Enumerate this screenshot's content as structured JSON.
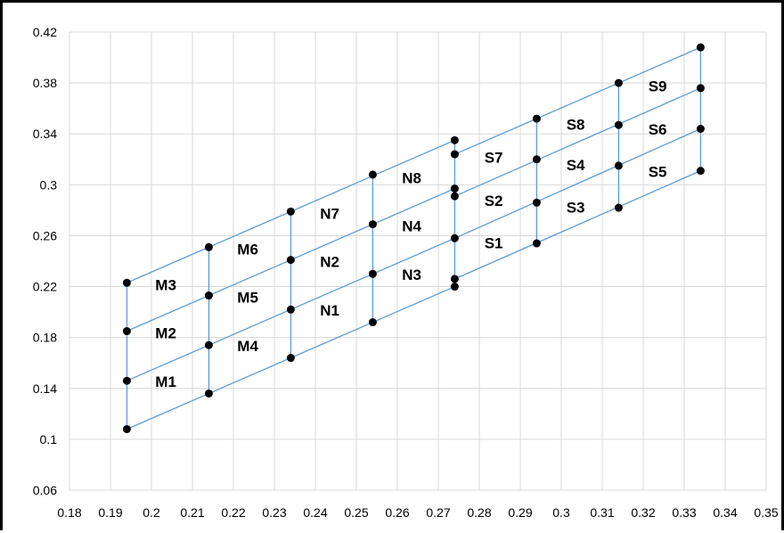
{
  "chart_data": {
    "type": "scatter",
    "title": "",
    "xlabel": "",
    "ylabel": "",
    "xlim": [
      0.18,
      0.35
    ],
    "ylim": [
      0.06,
      0.42
    ],
    "x_ticks": [
      "0.18",
      "0.19",
      "0.2",
      "0.21",
      "0.22",
      "0.23",
      "0.24",
      "0.25",
      "0.26",
      "0.27",
      "0.28",
      "0.29",
      "0.3",
      "0.31",
      "0.32",
      "0.33",
      "0.34",
      "0.35"
    ],
    "y_ticks": [
      "0.06",
      "0.1",
      "0.14",
      "0.18",
      "0.22",
      "0.26",
      "0.3",
      "0.34",
      "0.38",
      "0.42"
    ],
    "grid": true,
    "legend": "none",
    "colors": {
      "lines": "#5b9bd5",
      "points": "#000000",
      "grid": "#d9d9d9"
    },
    "points": [
      [
        0.194,
        0.108
      ],
      [
        0.194,
        0.146
      ],
      [
        0.194,
        0.185
      ],
      [
        0.194,
        0.223
      ],
      [
        0.214,
        0.136
      ],
      [
        0.214,
        0.174
      ],
      [
        0.214,
        0.213
      ],
      [
        0.214,
        0.251
      ],
      [
        0.234,
        0.164
      ],
      [
        0.234,
        0.202
      ],
      [
        0.234,
        0.241
      ],
      [
        0.234,
        0.279
      ],
      [
        0.254,
        0.192
      ],
      [
        0.254,
        0.23
      ],
      [
        0.254,
        0.269
      ],
      [
        0.254,
        0.308
      ],
      [
        0.274,
        0.22
      ],
      [
        0.274,
        0.226
      ],
      [
        0.274,
        0.258
      ],
      [
        0.274,
        0.291
      ],
      [
        0.274,
        0.297
      ],
      [
        0.274,
        0.324
      ],
      [
        0.274,
        0.335
      ],
      [
        0.294,
        0.254
      ],
      [
        0.294,
        0.286
      ],
      [
        0.294,
        0.32
      ],
      [
        0.294,
        0.352
      ],
      [
        0.314,
        0.282
      ],
      [
        0.314,
        0.315
      ],
      [
        0.314,
        0.347
      ],
      [
        0.314,
        0.38
      ],
      [
        0.334,
        0.311
      ],
      [
        0.334,
        0.344
      ],
      [
        0.334,
        0.376
      ],
      [
        0.334,
        0.408
      ]
    ],
    "lines": [
      [
        [
          0.194,
          0.108
        ],
        [
          0.274,
          0.22
        ]
      ],
      [
        [
          0.194,
          0.146
        ],
        [
          0.274,
          0.258
        ]
      ],
      [
        [
          0.194,
          0.185
        ],
        [
          0.274,
          0.297
        ]
      ],
      [
        [
          0.194,
          0.223
        ],
        [
          0.274,
          0.335
        ]
      ],
      [
        [
          0.274,
          0.226
        ],
        [
          0.334,
          0.311
        ]
      ],
      [
        [
          0.274,
          0.258
        ],
        [
          0.334,
          0.344
        ]
      ],
      [
        [
          0.274,
          0.291
        ],
        [
          0.334,
          0.376
        ]
      ],
      [
        [
          0.274,
          0.324
        ],
        [
          0.334,
          0.408
        ]
      ],
      [
        [
          0.194,
          0.108
        ],
        [
          0.194,
          0.223
        ]
      ],
      [
        [
          0.214,
          0.136
        ],
        [
          0.214,
          0.251
        ]
      ],
      [
        [
          0.234,
          0.164
        ],
        [
          0.234,
          0.279
        ]
      ],
      [
        [
          0.254,
          0.192
        ],
        [
          0.254,
          0.308
        ]
      ],
      [
        [
          0.274,
          0.22
        ],
        [
          0.274,
          0.335
        ]
      ],
      [
        [
          0.294,
          0.254
        ],
        [
          0.294,
          0.352
        ]
      ],
      [
        [
          0.314,
          0.282
        ],
        [
          0.314,
          0.38
        ]
      ],
      [
        [
          0.334,
          0.311
        ],
        [
          0.334,
          0.408
        ]
      ]
    ],
    "annotations": [
      {
        "text": "M1",
        "x": 0.2035,
        "y": 0.1455
      },
      {
        "text": "M2",
        "x": 0.2035,
        "y": 0.1835
      },
      {
        "text": "M3",
        "x": 0.2035,
        "y": 0.2215
      },
      {
        "text": "M4",
        "x": 0.2235,
        "y": 0.1735
      },
      {
        "text": "M5",
        "x": 0.2235,
        "y": 0.2115
      },
      {
        "text": "M6",
        "x": 0.2235,
        "y": 0.2495
      },
      {
        "text": "N1",
        "x": 0.2435,
        "y": 0.2015
      },
      {
        "text": "N2",
        "x": 0.2435,
        "y": 0.2395
      },
      {
        "text": "N3",
        "x": 0.2635,
        "y": 0.2295
      },
      {
        "text": "N4",
        "x": 0.2635,
        "y": 0.2675
      },
      {
        "text": "N7",
        "x": 0.2435,
        "y": 0.2775
      },
      {
        "text": "N8",
        "x": 0.2635,
        "y": 0.3055
      },
      {
        "text": "S1",
        "x": 0.2835,
        "y": 0.2545
      },
      {
        "text": "S2",
        "x": 0.2835,
        "y": 0.2875
      },
      {
        "text": "S3",
        "x": 0.3035,
        "y": 0.2825
      },
      {
        "text": "S4",
        "x": 0.3035,
        "y": 0.3155
      },
      {
        "text": "S5",
        "x": 0.3235,
        "y": 0.3105
      },
      {
        "text": "S6",
        "x": 0.3235,
        "y": 0.3435
      },
      {
        "text": "S7",
        "x": 0.2835,
        "y": 0.3215
      },
      {
        "text": "S8",
        "x": 0.3035,
        "y": 0.3475
      },
      {
        "text": "S9",
        "x": 0.3235,
        "y": 0.3775
      }
    ]
  }
}
